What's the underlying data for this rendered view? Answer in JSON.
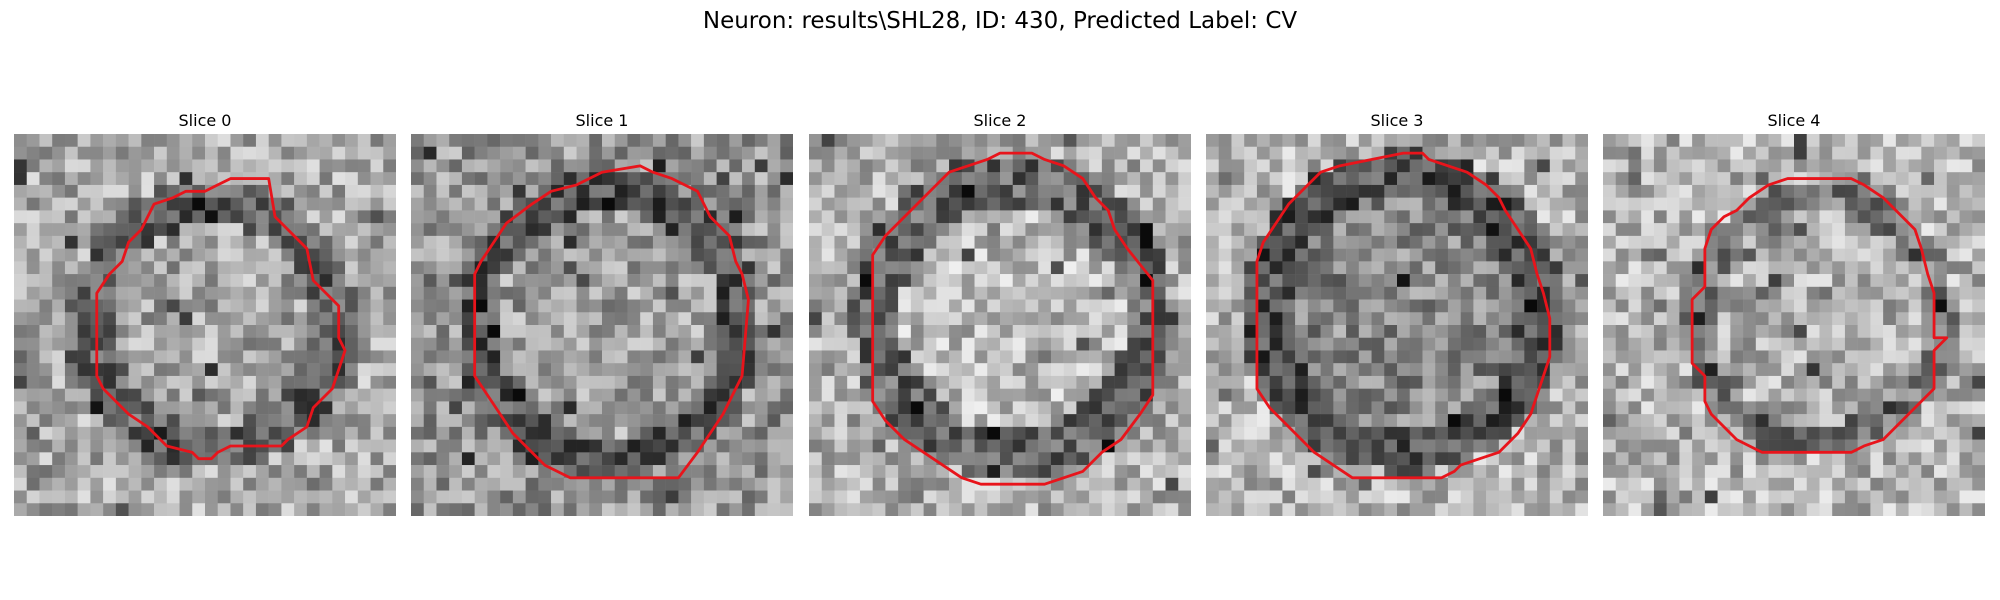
{
  "figure": {
    "title": "Neuron: results\\SHL28, ID: 430, Predicted Label: CV"
  },
  "slices": [
    {
      "label": "Slice 0",
      "contour": [
        [
          17,
          3.5
        ],
        [
          20,
          3.5
        ],
        [
          20.5,
          6.5
        ],
        [
          23,
          9
        ],
        [
          23.5,
          11.5
        ],
        [
          25.5,
          13.5
        ],
        [
          25.5,
          16
        ],
        [
          26,
          17
        ],
        [
          25.5,
          18.5
        ],
        [
          25,
          20
        ],
        [
          23.5,
          21.5
        ],
        [
          23,
          23
        ],
        [
          21.5,
          24
        ],
        [
          21,
          24.5
        ],
        [
          17,
          24.5
        ],
        [
          16,
          25
        ],
        [
          15.5,
          25.5
        ],
        [
          14.5,
          25.5
        ],
        [
          14,
          25
        ],
        [
          12,
          24.5
        ],
        [
          11.5,
          24
        ],
        [
          11,
          23.5
        ],
        [
          10.5,
          23
        ],
        [
          9,
          22
        ],
        [
          8,
          21
        ],
        [
          7,
          20
        ],
        [
          6.5,
          19
        ],
        [
          6.5,
          12.5
        ],
        [
          7.5,
          11
        ],
        [
          8.5,
          10
        ],
        [
          9,
          8.5
        ],
        [
          10,
          7.5
        ],
        [
          10.5,
          6.5
        ],
        [
          11,
          5.5
        ],
        [
          12.5,
          5
        ],
        [
          13.5,
          4.5
        ],
        [
          15,
          4.5
        ],
        [
          16,
          4
        ]
      ]
    },
    {
      "label": "Slice 1",
      "contour": [
        [
          15,
          3
        ],
        [
          18,
          2.5
        ],
        [
          19,
          3
        ],
        [
          20.5,
          3.5
        ],
        [
          22.5,
          4.5
        ],
        [
          23.5,
          6.5
        ],
        [
          25,
          8
        ],
        [
          25.5,
          10
        ],
        [
          26,
          11
        ],
        [
          26.5,
          13
        ],
        [
          26,
          19
        ],
        [
          25,
          21
        ],
        [
          24.5,
          22
        ],
        [
          23.5,
          23.5
        ],
        [
          22.5,
          25
        ],
        [
          21,
          27
        ],
        [
          12.5,
          27
        ],
        [
          10.5,
          26
        ],
        [
          9.5,
          25
        ],
        [
          8,
          23.5
        ],
        [
          7,
          22
        ],
        [
          6,
          20.5
        ],
        [
          5,
          19
        ],
        [
          5,
          11
        ],
        [
          5.5,
          10
        ],
        [
          6.5,
          8.5
        ],
        [
          7.5,
          7
        ],
        [
          9.5,
          5.5
        ],
        [
          11,
          4.5
        ],
        [
          13,
          4
        ]
      ]
    },
    {
      "label": "Slice 2",
      "contour": [
        [
          14,
          2
        ],
        [
          15,
          1.5
        ],
        [
          17.5,
          1.5
        ],
        [
          18.5,
          2
        ],
        [
          20,
          2.5
        ],
        [
          21.5,
          3.5
        ],
        [
          22.5,
          5
        ],
        [
          23.5,
          6
        ],
        [
          24,
          7.5
        ],
        [
          25,
          9
        ],
        [
          27,
          11.5
        ],
        [
          27,
          20.5
        ],
        [
          26,
          22
        ],
        [
          24.5,
          24
        ],
        [
          23,
          25
        ],
        [
          21.5,
          26.5
        ],
        [
          20,
          27
        ],
        [
          18.5,
          27.5
        ],
        [
          13.5,
          27.5
        ],
        [
          12,
          27
        ],
        [
          10.5,
          26
        ],
        [
          9,
          25
        ],
        [
          7.5,
          24
        ],
        [
          6,
          22.5
        ],
        [
          5,
          21
        ],
        [
          5,
          9.5
        ],
        [
          6,
          8
        ],
        [
          7,
          7
        ],
        [
          8,
          6
        ],
        [
          9,
          5
        ],
        [
          10,
          4
        ],
        [
          11,
          3
        ],
        [
          12.5,
          2.5
        ]
      ]
    },
    {
      "label": "Slice 3",
      "contour": [
        [
          13,
          2
        ],
        [
          15.5,
          1.5
        ],
        [
          17,
          1.5
        ],
        [
          17.5,
          2
        ],
        [
          19,
          2.5
        ],
        [
          20.5,
          3
        ],
        [
          22,
          4
        ],
        [
          23,
          5
        ],
        [
          23.5,
          6
        ],
        [
          24.5,
          7.5
        ],
        [
          25.5,
          9
        ],
        [
          26,
          11
        ],
        [
          26.5,
          12.5
        ],
        [
          27,
          14.5
        ],
        [
          27,
          17.5
        ],
        [
          26.5,
          19
        ],
        [
          26,
          20.5
        ],
        [
          25.5,
          22
        ],
        [
          24.5,
          23.5
        ],
        [
          23,
          25
        ],
        [
          21.5,
          25.5
        ],
        [
          20,
          26
        ],
        [
          19.5,
          26.5
        ],
        [
          18.5,
          27
        ],
        [
          11.5,
          27
        ],
        [
          10,
          26
        ],
        [
          8.5,
          25
        ],
        [
          7,
          23.5
        ],
        [
          5,
          21.5
        ],
        [
          4,
          20
        ],
        [
          4,
          10
        ],
        [
          4.5,
          8.5
        ],
        [
          5.5,
          7
        ],
        [
          6.5,
          5.5
        ],
        [
          7.5,
          4.5
        ],
        [
          9,
          3
        ],
        [
          10.5,
          2.5
        ]
      ]
    },
    {
      "label": "Slice 4",
      "contour": [
        [
          13,
          4
        ],
        [
          14.5,
          3.5
        ],
        [
          19.5,
          3.5
        ],
        [
          20.5,
          4
        ],
        [
          22,
          5
        ],
        [
          23,
          6
        ],
        [
          24.5,
          7.5
        ],
        [
          25,
          9
        ],
        [
          25.5,
          11
        ],
        [
          26,
          12.5
        ],
        [
          26,
          16
        ],
        [
          27,
          16
        ],
        [
          26,
          17
        ],
        [
          26,
          20
        ],
        [
          25,
          21
        ],
        [
          24,
          22
        ],
        [
          23,
          23
        ],
        [
          22,
          24
        ],
        [
          20.5,
          24.5
        ],
        [
          19.5,
          25
        ],
        [
          12.5,
          25
        ],
        [
          11.5,
          24.5
        ],
        [
          10.5,
          24
        ],
        [
          9.5,
          23
        ],
        [
          8.5,
          22
        ],
        [
          8,
          21
        ],
        [
          8,
          19
        ],
        [
          7,
          18
        ],
        [
          7,
          13
        ],
        [
          8,
          12
        ],
        [
          8,
          9
        ],
        [
          8.5,
          7.5
        ],
        [
          9.5,
          6.5
        ],
        [
          10.5,
          6
        ],
        [
          11.5,
          5
        ]
      ]
    }
  ]
}
